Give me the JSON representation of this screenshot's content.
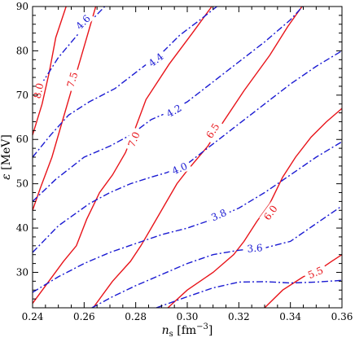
{
  "chart_data": {
    "type": "line",
    "title": "",
    "xlabel": "n_s [fm^-3]",
    "ylabel": "ε [MeV]",
    "xlim": [
      0.24,
      0.36
    ],
    "ylim": [
      22,
      90
    ],
    "x_ticks": [
      0.24,
      0.26,
      0.28,
      0.3,
      0.32,
      0.34,
      0.36
    ],
    "x_tick_labels": [
      "0.24",
      "0.26",
      "0.28",
      "0.30",
      "0.32",
      "0.34",
      "0.36"
    ],
    "y_ticks": [
      30,
      40,
      50,
      60,
      70,
      80,
      90
    ],
    "y_tick_labels": [
      "30",
      "40",
      "50",
      "60",
      "70",
      "80",
      "90"
    ],
    "grid": false,
    "series": [
      {
        "label": "8.0",
        "color": "#e8141a",
        "dash": "solid",
        "points": [
          [
            0.24,
            61
          ],
          [
            0.2437,
            68
          ],
          [
            0.2464,
            75
          ],
          [
            0.249,
            83
          ],
          [
            0.253,
            90
          ]
        ],
        "label_at": [
          0.2422,
          71
        ]
      },
      {
        "label": "7.5",
        "color": "#e8141a",
        "dash": "solid",
        "points": [
          [
            0.24,
            44
          ],
          [
            0.243,
            49
          ],
          [
            0.2475,
            56
          ],
          [
            0.252,
            65
          ],
          [
            0.255,
            71
          ],
          [
            0.2595,
            80
          ],
          [
            0.2645,
            90
          ]
        ],
        "label_at": [
          0.2553,
          73.5
        ]
      },
      {
        "label": "7.0",
        "color": "#e8141a",
        "dash": "solid",
        "points": [
          [
            0.24,
            23
          ],
          [
            0.252,
            32.5
          ],
          [
            0.257,
            36
          ],
          [
            0.261,
            42
          ],
          [
            0.266,
            48
          ],
          [
            0.271,
            52
          ],
          [
            0.276,
            57
          ],
          [
            0.2795,
            62
          ],
          [
            0.284,
            69
          ],
          [
            0.293,
            77
          ],
          [
            0.302,
            84
          ],
          [
            0.3095,
            90
          ]
        ],
        "label_at": [
          0.2792,
          60
        ]
      },
      {
        "label": "6.5",
        "color": "#e8141a",
        "dash": "solid",
        "points": [
          [
            0.2635,
            22
          ],
          [
            0.271,
            28
          ],
          [
            0.278,
            32.5
          ],
          [
            0.282,
            36
          ],
          [
            0.286,
            40
          ],
          [
            0.291,
            45
          ],
          [
            0.296,
            50
          ],
          [
            0.3,
            53
          ],
          [
            0.308,
            58.5
          ],
          [
            0.314,
            64
          ],
          [
            0.322,
            71
          ],
          [
            0.332,
            79
          ],
          [
            0.339,
            85.5
          ],
          [
            0.3445,
            90
          ]
        ],
        "label_at": [
          0.3098,
          62
        ]
      },
      {
        "label": "6.0",
        "color": "#e8141a",
        "dash": "solid",
        "points": [
          [
            0.2925,
            22
          ],
          [
            0.3,
            26
          ],
          [
            0.31,
            30
          ],
          [
            0.318,
            34
          ],
          [
            0.322,
            37
          ],
          [
            0.327,
            41.5
          ],
          [
            0.332,
            45.5
          ],
          [
            0.337,
            51.5
          ],
          [
            0.342,
            56
          ],
          [
            0.348,
            60.5
          ],
          [
            0.354,
            64
          ],
          [
            0.36,
            67
          ]
        ],
        "label_at": [
          0.3322,
          43.5
        ]
      },
      {
        "label": "5.5",
        "color": "#e8141a",
        "dash": "solid",
        "points": [
          [
            0.33,
            22
          ],
          [
            0.337,
            26
          ],
          [
            0.345,
            29
          ],
          [
            0.351,
            30.5
          ],
          [
            0.356,
            32.5
          ],
          [
            0.36,
            34
          ]
        ],
        "label_at": [
          0.3497,
          30
        ]
      },
      {
        "label": "4.6",
        "color": "#1a1ad2",
        "dash": "dashdot",
        "points": [
          [
            0.24,
            70
          ],
          [
            0.244,
            73
          ],
          [
            0.25,
            78.5
          ],
          [
            0.258,
            84
          ],
          [
            0.268,
            90
          ]
        ],
        "label_at": [
          0.2595,
          86.5
        ]
      },
      {
        "label": "4.4",
        "color": "#1a1ad2",
        "dash": "dashdot",
        "points": [
          [
            0.24,
            56
          ],
          [
            0.247,
            61
          ],
          [
            0.254,
            65.5
          ],
          [
            0.262,
            68.5
          ],
          [
            0.272,
            71.5
          ],
          [
            0.282,
            76
          ],
          [
            0.291,
            80
          ],
          [
            0.297,
            83.5
          ],
          [
            0.305,
            87
          ],
          [
            0.3115,
            90
          ]
        ],
        "label_at": [
          0.2878,
          78
        ]
      },
      {
        "label": "4.2",
        "color": "#1a1ad2",
        "dash": "dashdot",
        "points": [
          [
            0.24,
            46
          ],
          [
            0.249,
            51
          ],
          [
            0.26,
            56
          ],
          [
            0.27,
            58.5
          ],
          [
            0.278,
            61
          ],
          [
            0.286,
            64.5
          ],
          [
            0.294,
            66.5
          ],
          [
            0.3,
            68.5
          ],
          [
            0.31,
            73
          ],
          [
            0.32,
            77.5
          ],
          [
            0.33,
            82
          ],
          [
            0.34,
            87
          ],
          [
            0.3447,
            90
          ]
        ],
        "label_at": [
          0.2948,
          66.5
        ]
      },
      {
        "label": "4.0",
        "color": "#1a1ad2",
        "dash": "dashdot",
        "points": [
          [
            0.24,
            34.5
          ],
          [
            0.245,
            37.5
          ],
          [
            0.25,
            40.5
          ],
          [
            0.256,
            43
          ],
          [
            0.262,
            45.5
          ],
          [
            0.27,
            48
          ],
          [
            0.278,
            50
          ],
          [
            0.286,
            51.5
          ],
          [
            0.292,
            52.5
          ],
          [
            0.3,
            54.5
          ],
          [
            0.31,
            59
          ],
          [
            0.32,
            63.5
          ],
          [
            0.33,
            68
          ],
          [
            0.34,
            72.5
          ],
          [
            0.35,
            76.5
          ],
          [
            0.36,
            80
          ]
        ],
        "label_at": [
          0.297,
          53.5
        ]
      },
      {
        "label": "3.8",
        "color": "#1a1ad2",
        "dash": "dashdot",
        "points": [
          [
            0.24,
            25.5
          ],
          [
            0.25,
            29
          ],
          [
            0.26,
            32
          ],
          [
            0.27,
            34.5
          ],
          [
            0.28,
            36.5
          ],
          [
            0.29,
            38.5
          ],
          [
            0.3,
            40
          ],
          [
            0.31,
            42
          ],
          [
            0.32,
            44.5
          ],
          [
            0.33,
            48
          ],
          [
            0.34,
            52
          ],
          [
            0.35,
            56
          ],
          [
            0.36,
            59.5
          ]
        ],
        "label_at": [
          0.3122,
          43
        ]
      },
      {
        "label": "3.6",
        "color": "#1a1ad2",
        "dash": "dashdot",
        "points": [
          [
            0.263,
            22
          ],
          [
            0.271,
            24.5
          ],
          [
            0.28,
            27
          ],
          [
            0.29,
            29.5
          ],
          [
            0.3,
            32
          ],
          [
            0.31,
            34
          ],
          [
            0.32,
            35
          ],
          [
            0.33,
            35.5
          ],
          [
            0.34,
            37
          ],
          [
            0.35,
            41
          ],
          [
            0.36,
            45
          ]
        ],
        "label_at": [
          0.3262,
          35.5
        ]
      },
      {
        "label": "",
        "color": "#1a1ad2",
        "dash": "dashdot",
        "points": [
          [
            0.288,
            22
          ],
          [
            0.3,
            24.5
          ],
          [
            0.31,
            26.5
          ],
          [
            0.32,
            27.8
          ],
          [
            0.33,
            27.9
          ],
          [
            0.34,
            27.6
          ],
          [
            0.35,
            27.8
          ],
          [
            0.36,
            28.2
          ]
        ],
        "label_at": null
      }
    ]
  }
}
